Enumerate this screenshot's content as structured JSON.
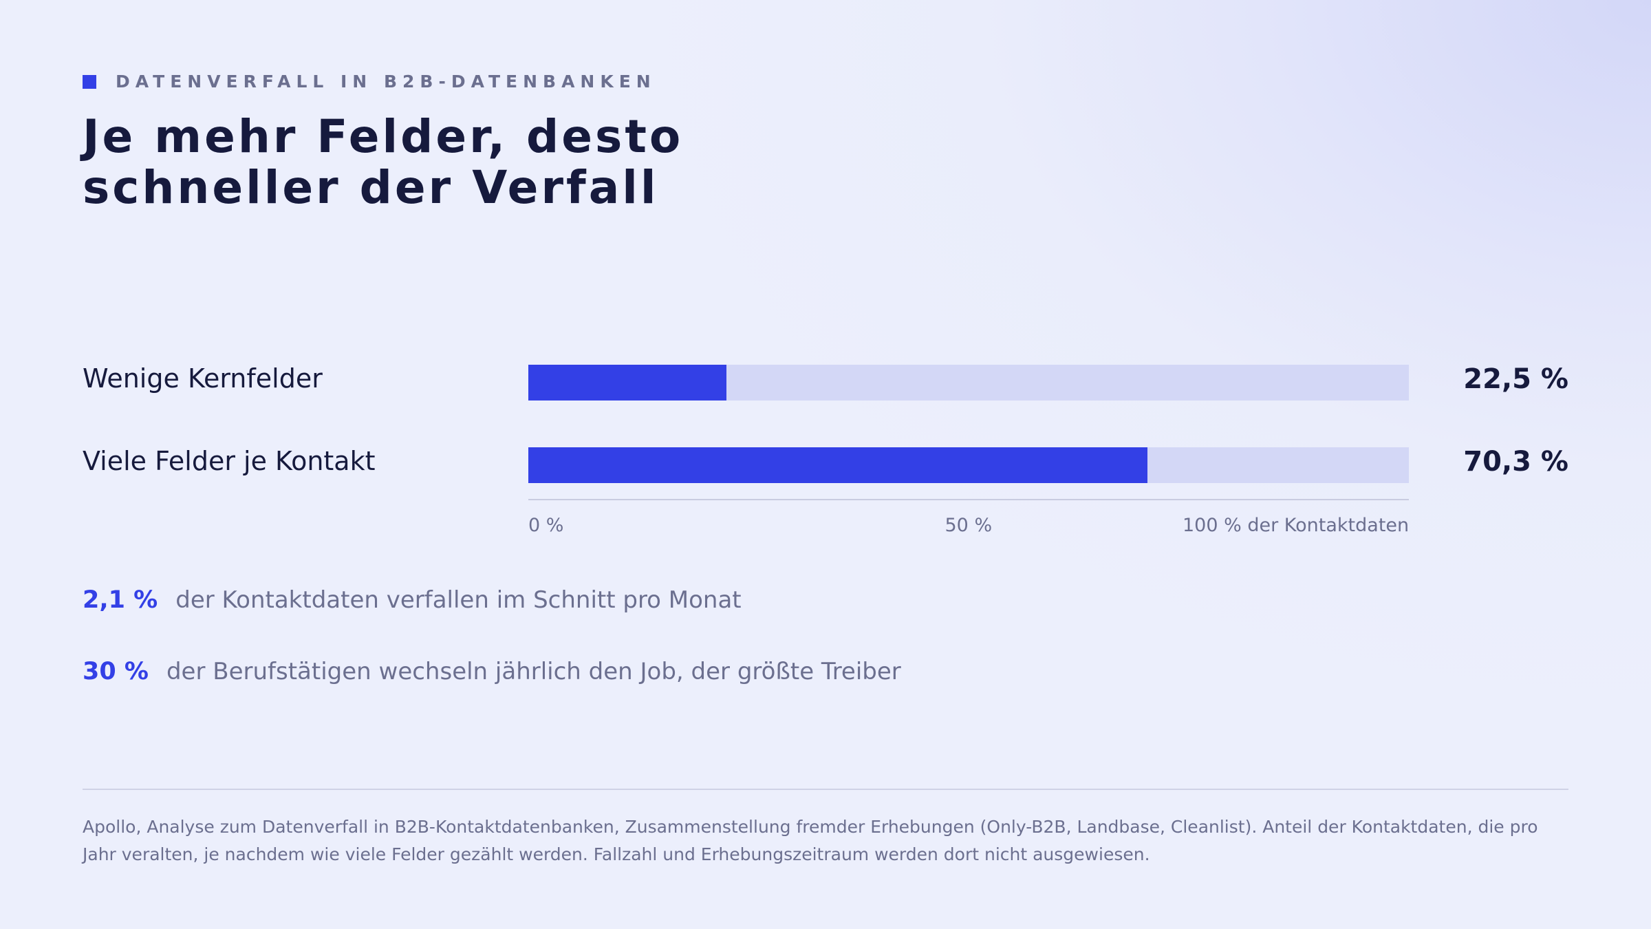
{
  "header": {
    "kicker": "DATENVERFALL IN B2B-DATENBANKEN",
    "title": "Je mehr Felder, desto schneller der Verfall"
  },
  "chart_data": {
    "type": "bar",
    "orientation": "horizontal",
    "categories": [
      "Wenige Kernfelder",
      "Viele Felder je Kontakt"
    ],
    "values": [
      22.5,
      70.3
    ],
    "value_labels": [
      "22,5 %",
      "70,3 %"
    ],
    "xlim": [
      0,
      100
    ],
    "x_ticks": [
      "0 %",
      "50 %",
      "100 % der Kontaktdaten"
    ],
    "grid": false,
    "colors": {
      "bar": "#3340e6",
      "track": "#d3d7f6"
    }
  },
  "stats": [
    {
      "value": "2,1 %",
      "text": "der Kontaktdaten verfallen im Schnitt pro Monat"
    },
    {
      "value": "30 %",
      "text": "der Berufstätigen wechseln jährlich den Job, der größte Treiber"
    }
  ],
  "source": "Apollo, Analyse zum Datenverfall in B2B-Kontaktdatenbanken, Zusammenstellung fremder Erhebungen (Only-B2B, Landbase, Cleanlist). Anteil der Kontaktdaten, die pro Jahr veralten, je nachdem wie viele Felder gezählt werden. Fallzahl und Erhebungszeitraum werden dort nicht ausgewiesen.",
  "colors": {
    "accent": "#3340e6",
    "text": "#161a3d",
    "muted": "#6b6f8f"
  }
}
